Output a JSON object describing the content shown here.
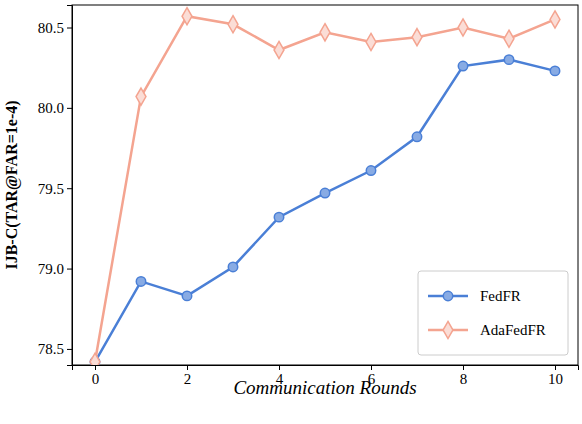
{
  "chart_data": {
    "type": "line",
    "x_label": "Communication Rounds",
    "y_label": "IJB-C(TAR@FAR=1e-4)",
    "x": [
      0,
      1,
      2,
      3,
      4,
      5,
      6,
      7,
      8,
      9,
      10
    ],
    "series": [
      {
        "name": "FedFR",
        "color": "#4a7fd6",
        "marker": "circle",
        "line_style": "solid",
        "values": [
          78.42,
          78.92,
          78.83,
          79.01,
          79.32,
          79.47,
          79.61,
          79.82,
          80.26,
          80.3,
          80.23
        ]
      },
      {
        "name": "AdaFedFR",
        "color": "#f4a490",
        "marker": "diamond",
        "line_style": "solid",
        "values": [
          78.42,
          80.07,
          80.57,
          80.52,
          80.36,
          80.47,
          80.41,
          80.44,
          80.5,
          80.43,
          80.55
        ]
      }
    ],
    "xlim": [
      -0.5,
      10.5
    ],
    "ylim": [
      78.4,
      80.64
    ],
    "xticks": [
      0,
      2,
      4,
      6,
      8,
      10
    ],
    "yticks": [
      78.5,
      {
        "value": 79,
        "label": "79.0"
      },
      79.5,
      {
        "value": 80,
        "label": "80.0"
      },
      80.5
    ],
    "grid": false,
    "legend": "lower right"
  }
}
